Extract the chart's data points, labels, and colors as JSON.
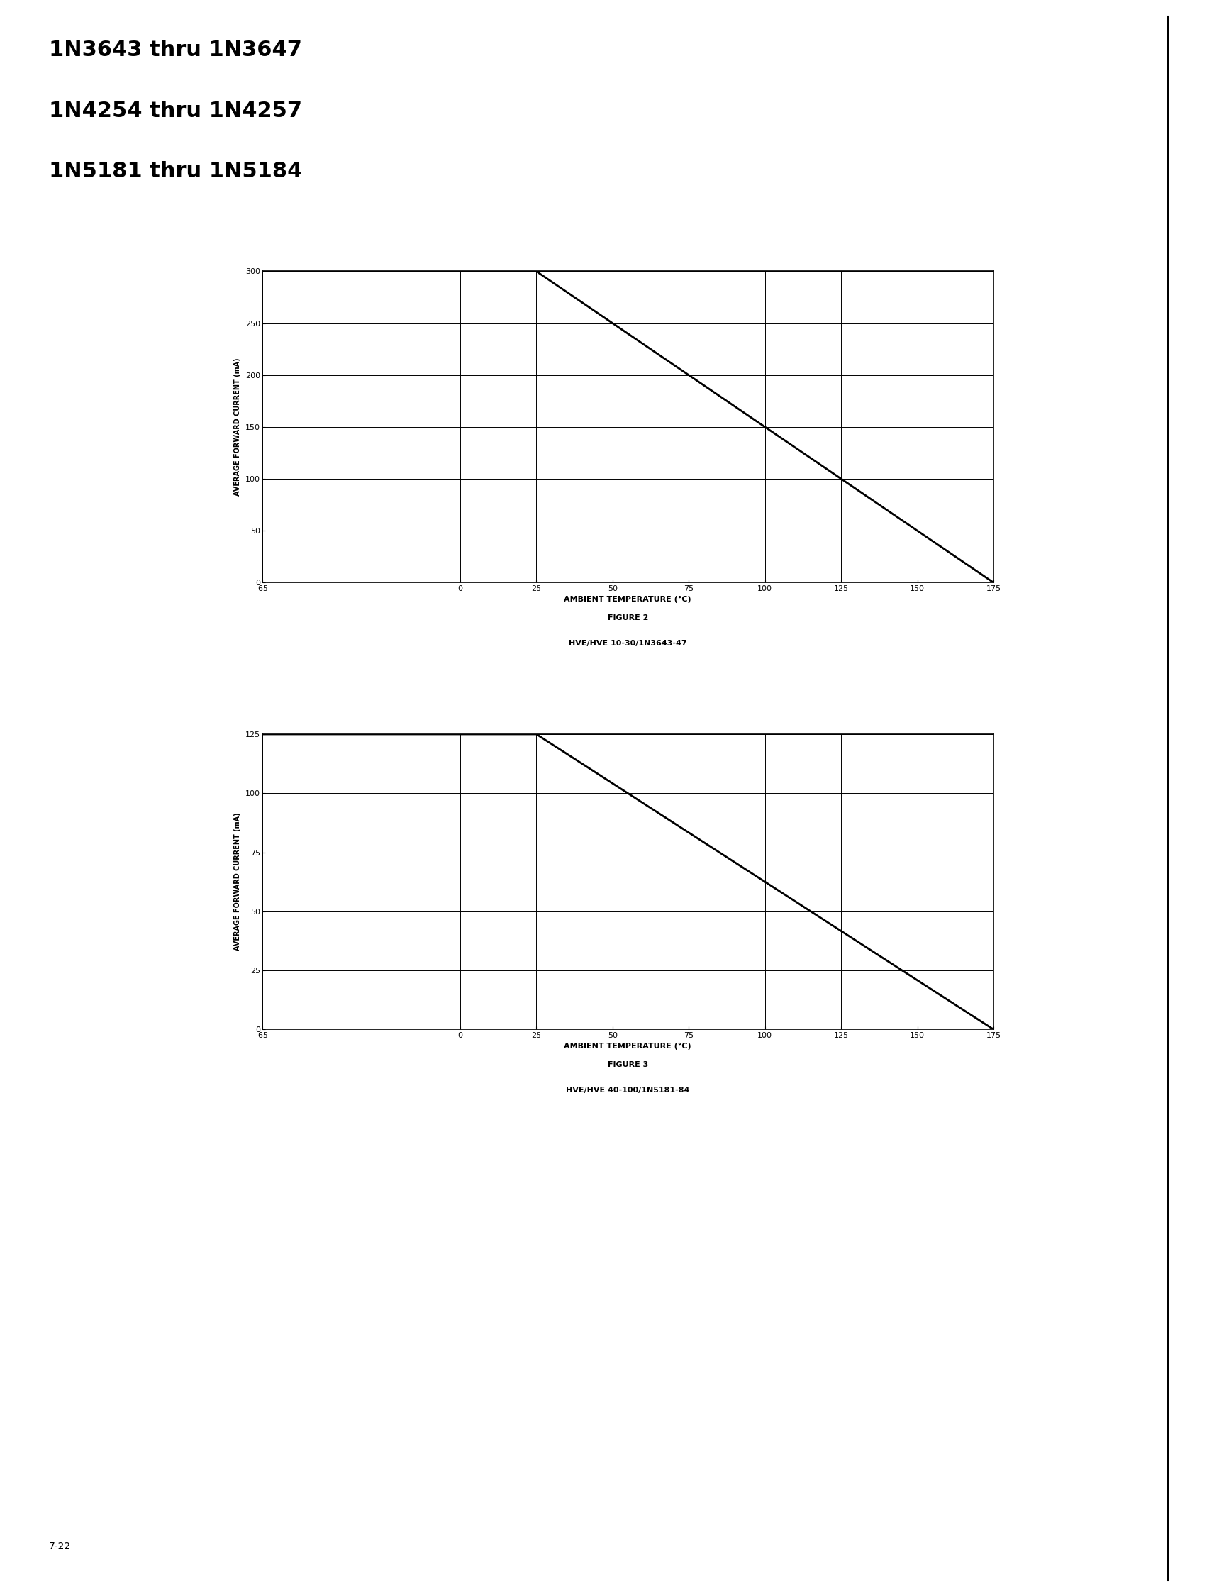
{
  "header_lines": [
    "1N3643 thru 1N3647",
    "1N4254 thru 1N4257",
    "1N5181 thru 1N5184"
  ],
  "fig2": {
    "title": "FIGURE 2",
    "subtitle": "HVE/HVE 10-30/1N3643-47",
    "ylabel": "AVERAGE FORWARD CURRENT (mA)",
    "xlabel": "AMBIENT TEMPERATURE (°C)",
    "yticks": [
      0,
      50,
      100,
      150,
      200,
      250,
      300
    ],
    "xticks": [
      -65,
      0,
      25,
      50,
      75,
      100,
      125,
      150,
      175
    ],
    "xlim": [
      -65,
      175
    ],
    "ylim": [
      0,
      300
    ],
    "line_x": [
      -65,
      25,
      175
    ],
    "line_y": [
      300,
      300,
      0
    ]
  },
  "fig3": {
    "title": "FIGURE 3",
    "subtitle": "HVE/HVE 40-100/1N5181-84",
    "ylabel": "AVERAGE FORWARD CURRENT (mA)",
    "xlabel": "AMBIENT TEMPERATURE (°C)",
    "yticks": [
      0,
      25,
      50,
      75,
      100,
      125
    ],
    "xticks": [
      -65,
      0,
      25,
      50,
      75,
      100,
      125,
      150,
      175
    ],
    "xlim": [
      -65,
      175
    ],
    "ylim": [
      0,
      125
    ],
    "line_x": [
      -65,
      25,
      175
    ],
    "line_y": [
      125,
      125,
      0
    ]
  },
  "page_number": "7-22",
  "bg_color": "#ffffff",
  "line_color": "#000000",
  "grid_color": "#000000",
  "tick_color": "#000000",
  "label_color": "#000000",
  "header_fontsize": 22,
  "chart_tick_fontsize": 8,
  "chart_label_fontsize": 7,
  "chart_xlabel_fontsize": 8,
  "caption_title_fontsize": 8,
  "caption_sub_fontsize": 8,
  "page_fontsize": 10,
  "right_border_x": 0.958
}
